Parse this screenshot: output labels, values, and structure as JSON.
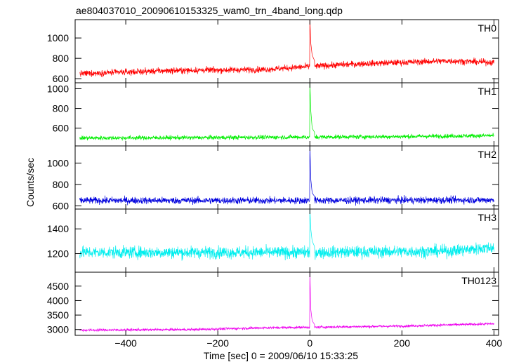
{
  "title": "ae804037010_20090610153325_wam0_trn_4band_long.qdp",
  "chart_data": {
    "type": "line",
    "title": "ae804037010_20090610153325_wam0_trn_4band_long.qdp",
    "xlabel": "Time [sec] 0 = 2009/06/10 15:33:25",
    "ylabel": "Counts/sec",
    "xlim": [
      -510,
      410
    ],
    "x_ticks": [
      -400,
      -200,
      0,
      200,
      400
    ],
    "x_tick_labels": [
      "−400",
      "−200",
      "0",
      "200",
      "400"
    ],
    "panels": [
      {
        "name": "TH0",
        "color": "#ff0000",
        "ylim": [
          560,
          1180
        ],
        "y_ticks": [
          600,
          800,
          1000
        ],
        "y_tick_labels": [
          "600",
          "800",
          "1000"
        ],
        "baseline": [
          [
            -500,
            650
          ],
          [
            -300,
            680
          ],
          [
            -100,
            690
          ],
          [
            0,
            720
          ],
          [
            100,
            745
          ],
          [
            300,
            775
          ],
          [
            400,
            760
          ]
        ],
        "noise": 28,
        "peak_time": 0,
        "peak_value": 1180,
        "decay": [
          [
            2,
            950
          ],
          [
            5,
            830
          ],
          [
            10,
            780
          ]
        ]
      },
      {
        "name": "TH1",
        "color": "#00ee00",
        "ylim": [
          420,
          1060
        ],
        "y_ticks": [
          600,
          800,
          1000
        ],
        "y_tick_labels": [
          "600",
          "800",
          "1000"
        ],
        "baseline": [
          [
            -500,
            500
          ],
          [
            -200,
            505
          ],
          [
            0,
            510
          ],
          [
            200,
            515
          ],
          [
            400,
            525
          ]
        ],
        "noise": 20,
        "peak_time": 0,
        "peak_value": 1060,
        "decay": [
          [
            2,
            780
          ],
          [
            5,
            600
          ],
          [
            10,
            560
          ]
        ]
      },
      {
        "name": "TH2",
        "color": "#0000dd",
        "ylim": [
          570,
          1160
        ],
        "y_ticks": [
          600,
          800,
          1000
        ],
        "y_tick_labels": [
          "600",
          "800",
          "1000"
        ],
        "baseline": [
          [
            -500,
            650
          ],
          [
            0,
            650
          ],
          [
            400,
            655
          ]
        ],
        "noise": 30,
        "peak_time": 0,
        "peak_value": 1160,
        "decay": [
          [
            2,
            850
          ],
          [
            5,
            720
          ],
          [
            10,
            690
          ]
        ]
      },
      {
        "name": "TH3",
        "color": "#00eeee",
        "ylim": [
          1050,
          1560
        ],
        "y_ticks": [
          1200,
          1400
        ],
        "y_tick_labels": [
          "1200",
          "1400"
        ],
        "baseline": [
          [
            -500,
            1210
          ],
          [
            0,
            1210
          ],
          [
            300,
            1220
          ],
          [
            400,
            1250
          ]
        ],
        "noise": 45,
        "peak_time": 0,
        "peak_value": 1560,
        "decay": [
          [
            2,
            1400
          ],
          [
            5,
            1300
          ],
          [
            10,
            1260
          ]
        ]
      },
      {
        "name": "TH0123",
        "color": "#ee00ee",
        "ylim": [
          2800,
          4980
        ],
        "y_ticks": [
          3000,
          3500,
          4000,
          4500
        ],
        "y_tick_labels": [
          "3000",
          "3500",
          "4000",
          "4500"
        ],
        "baseline": [
          [
            -500,
            2980
          ],
          [
            -250,
            3000
          ],
          [
            -100,
            3060
          ],
          [
            0,
            3080
          ],
          [
            200,
            3120
          ],
          [
            400,
            3200
          ]
        ],
        "noise": 40,
        "peak_time": 0,
        "peak_value": 4980,
        "decay": [
          [
            2,
            3700
          ],
          [
            5,
            3300
          ],
          [
            10,
            3180
          ]
        ]
      }
    ]
  }
}
